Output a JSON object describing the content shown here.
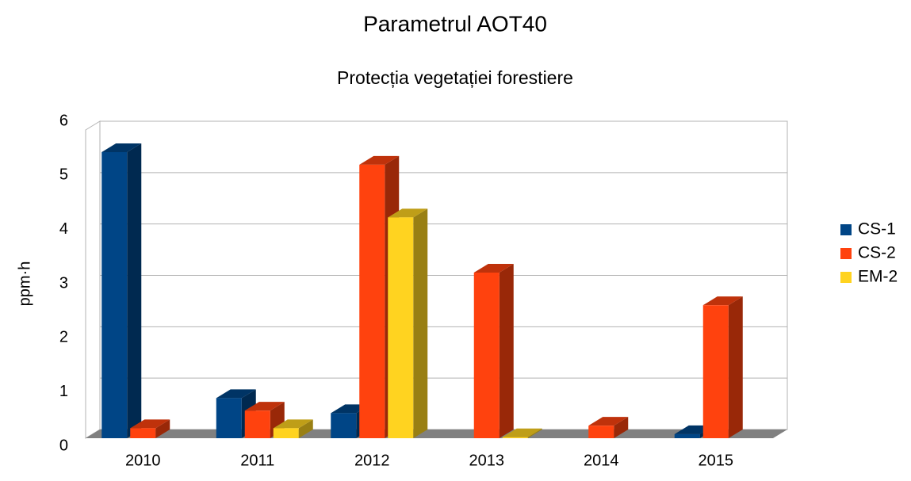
{
  "chart_data": {
    "type": "bar3d",
    "title": "Parametrul AOT40",
    "subtitle": "Protecția vegetației forestiere",
    "y_label": "ppm·h",
    "categories": [
      "2010",
      "2011",
      "2012",
      "2013",
      "2014",
      "2015"
    ],
    "series": [
      {
        "name": "CS-1",
        "color": "#004586",
        "values": [
          5.7,
          0.8,
          0.5,
          null,
          null,
          0.08
        ]
      },
      {
        "name": "CS-2",
        "color": "#ff420e",
        "values": [
          0.2,
          0.55,
          5.45,
          3.3,
          0.25,
          2.65
        ]
      },
      {
        "name": "EM-2",
        "color": "#ffd320",
        "values": [
          null,
          0.2,
          4.4,
          0.02,
          null,
          null
        ]
      }
    ],
    "ylim": [
      0,
      6
    ],
    "yticks": [
      0,
      1,
      2,
      3,
      4,
      5,
      6
    ],
    "grid": true,
    "legend": "right"
  }
}
